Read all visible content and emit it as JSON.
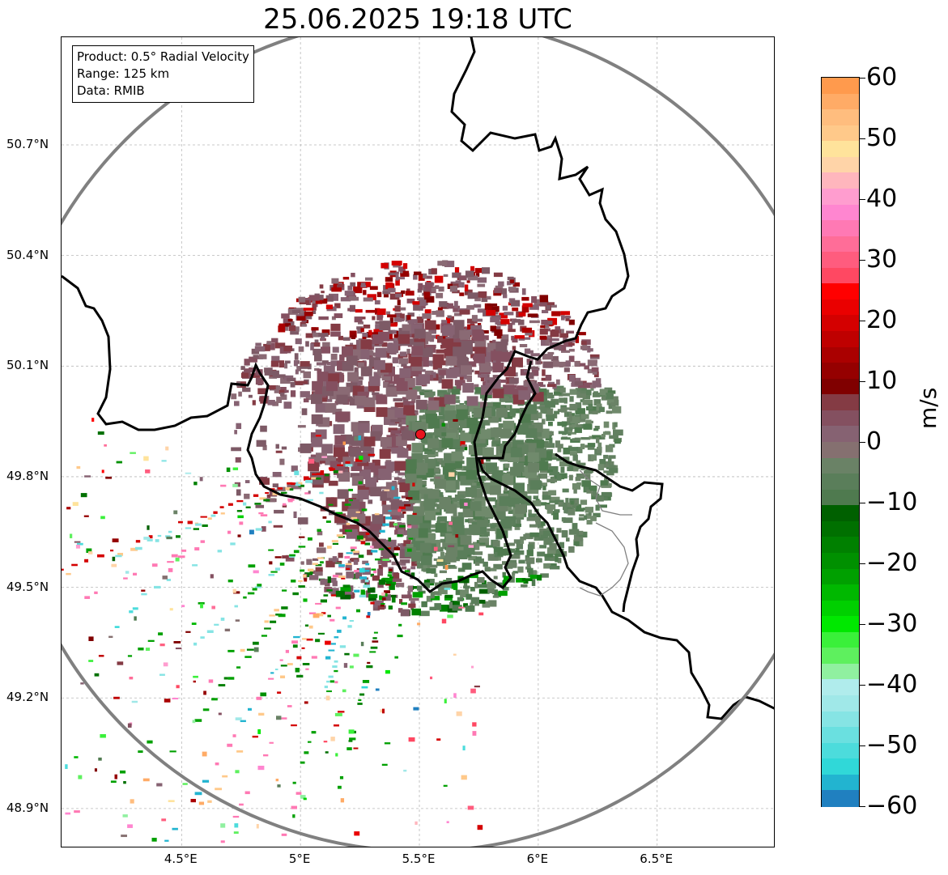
{
  "title": "25.06.2025 19:18 UTC",
  "info_box": {
    "product": "Product: 0.5° Radial Velocity",
    "range": "Range: 125 km",
    "data": "Data: RMIB"
  },
  "map": {
    "lon_range": [
      4.0,
      7.0
    ],
    "lat_range": [
      48.8,
      51.0
    ],
    "lat_ticks": [
      "50.7°N",
      "50.4°N",
      "50.1°N",
      "49.8°N",
      "49.5°N",
      "49.2°N",
      "48.9°N"
    ],
    "lon_ticks": [
      "4.5°E",
      "5°E",
      "5.5°E",
      "6°E",
      "6.5°E"
    ],
    "radar_site": {
      "lon": 5.505,
      "lat": 49.915,
      "color": "#e8141e"
    },
    "range_ring_color": "#808080",
    "grid": true,
    "border_color": "#000000"
  },
  "colorbar": {
    "unit": "m/s",
    "ticks": [
      "60",
      "50",
      "40",
      "30",
      "20",
      "10",
      "0",
      "−10",
      "−20",
      "−30",
      "−40",
      "−50",
      "−60"
    ],
    "range": [
      -60,
      60
    ],
    "colors_top_to_bottom": [
      "#ff9a4d",
      "#ffab66",
      "#ffbd7e",
      "#ffc98a",
      "#ffe39b",
      "#ffd4a8",
      "#ffb6bd",
      "#ff9dcf",
      "#ff86d0",
      "#ff79b4",
      "#ff6d98",
      "#ff5c7e",
      "#ff4862",
      "#ff0000",
      "#ea0000",
      "#d40000",
      "#bf0000",
      "#aa0000",
      "#950000",
      "#800000",
      "#843b44",
      "#845060",
      "#866272",
      "#857070",
      "#6a8266",
      "#5a7e5a",
      "#4f7a4f",
      "#006000",
      "#007000",
      "#008000",
      "#009000",
      "#00a000",
      "#00b800",
      "#00d000",
      "#00e800",
      "#3af03a",
      "#5ef05e",
      "#90f0a0",
      "#b0ecec",
      "#a0e8e8",
      "#86e4e4",
      "#6ae0e0",
      "#4cdcdc",
      "#30d8d8",
      "#22b4d0",
      "#2080c0"
    ]
  }
}
